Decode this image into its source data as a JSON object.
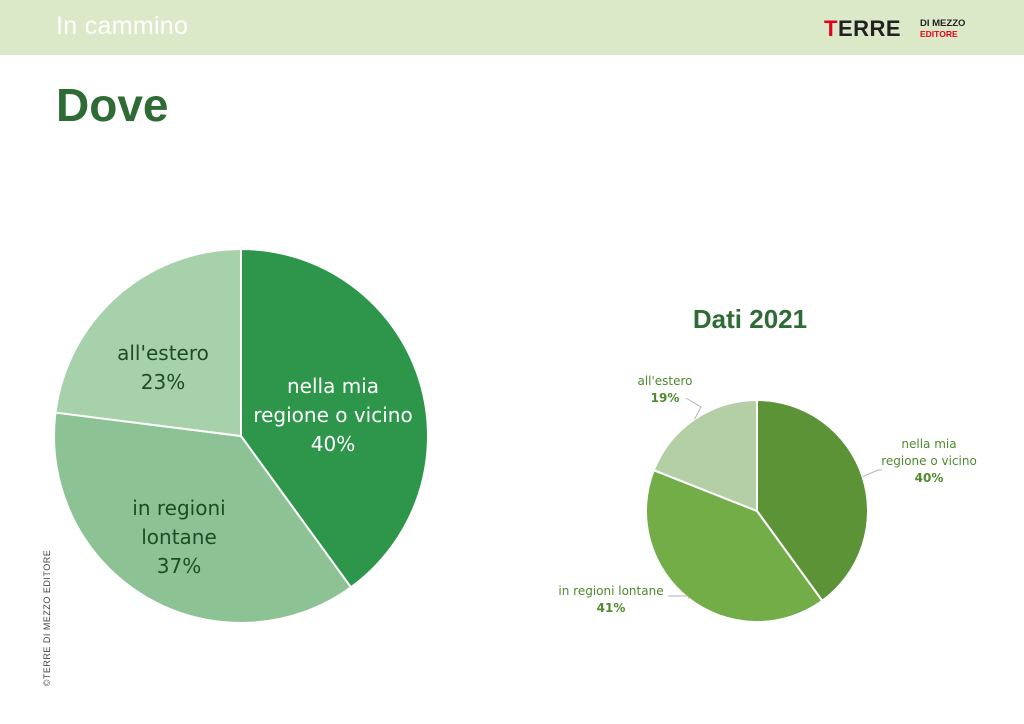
{
  "header": {
    "section": "In cammino",
    "logo": {
      "main_first": "T",
      "main_rest": "ERRE",
      "sub1": "DI MEZZO",
      "sub2": "EDITORE"
    }
  },
  "page": {
    "title": "Dove"
  },
  "copyright": "©TERRE DI MEZZO EDITORE",
  "chart_data": [
    {
      "type": "pie",
      "title": "",
      "slices": [
        {
          "label_lines": [
            "nella mia",
            "regione o vicino"
          ],
          "value": 40,
          "value_label": "40%",
          "color": "#2e964a",
          "label_color": "#ffffff"
        },
        {
          "label_lines": [
            "in regioni",
            "lontane"
          ],
          "value": 37,
          "value_label": "37%",
          "color": "#8dc394",
          "label_color": "#1d4d25"
        },
        {
          "label_lines": [
            "all'estero"
          ],
          "value": 23,
          "value_label": "23%",
          "color": "#a6d1aa",
          "label_color": "#1d4d25"
        }
      ]
    },
    {
      "type": "pie",
      "title": "Dati 2021",
      "slices": [
        {
          "label_lines": [
            "nella mia",
            "regione o vicino"
          ],
          "value": 40,
          "value_label": "40%",
          "color": "#5c9337",
          "label_color": "#4f8a2e"
        },
        {
          "label_lines": [
            "in regioni lontane"
          ],
          "value": 41,
          "value_label": "41%",
          "color": "#72ad48",
          "label_color": "#4f8a2e"
        },
        {
          "label_lines": [
            "all'estero"
          ],
          "value": 19,
          "value_label": "19%",
          "color": "#b4cfa5",
          "label_color": "#4f8a2e"
        }
      ]
    }
  ]
}
